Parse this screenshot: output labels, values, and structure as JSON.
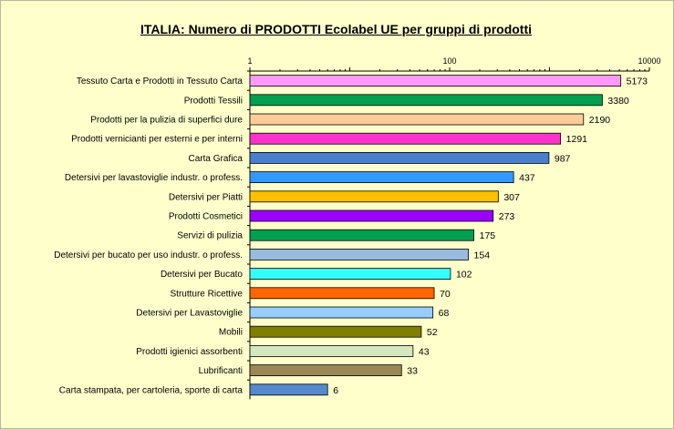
{
  "chart_data": {
    "type": "bar",
    "orientation": "horizontal",
    "title": "ITALIA: Numero di PRODOTTI  Ecolabel UE per gruppi di prodotti",
    "xscale": "log",
    "xlim": [
      1,
      10000
    ],
    "xticks": [
      "1",
      "100",
      "10000"
    ],
    "grid": false,
    "legend": "none",
    "categories": [
      "Tessuto Carta e Prodotti in Tessuto Carta",
      "Prodotti Tessili",
      "Prodotti per la pulizia di superfici dure",
      "Prodotti vernicianti per esterni e per interni",
      "Carta Grafica",
      "Detersivi per lavastoviglie industr. o profess.",
      "Detersivi per Piatti",
      "Prodotti Cosmetici",
      "Servizi di pulizia",
      "Detersivi per bucato per uso industr. o profess.",
      "Detersivi per Bucato",
      "Strutture Ricettive",
      "Detersivi per Lavastoviglie",
      "Mobili",
      "Prodotti igienici assorbenti",
      "Lubrificanti",
      "Carta stampata, per cartoleria, sporte di carta"
    ],
    "values": [
      5173,
      3380,
      2190,
      1291,
      987,
      437,
      307,
      273,
      175,
      154,
      102,
      70,
      68,
      52,
      43,
      33,
      6
    ],
    "colors": [
      "#ff99ff",
      "#00a050",
      "#ffcc99",
      "#ff33cc",
      "#4a7fd0",
      "#3399ff",
      "#ffc000",
      "#9900ff",
      "#00a050",
      "#99bbdd",
      "#33ffff",
      "#ff6600",
      "#99ccff",
      "#808000",
      "#d4e8c0",
      "#998855",
      "#5588cc"
    ]
  }
}
